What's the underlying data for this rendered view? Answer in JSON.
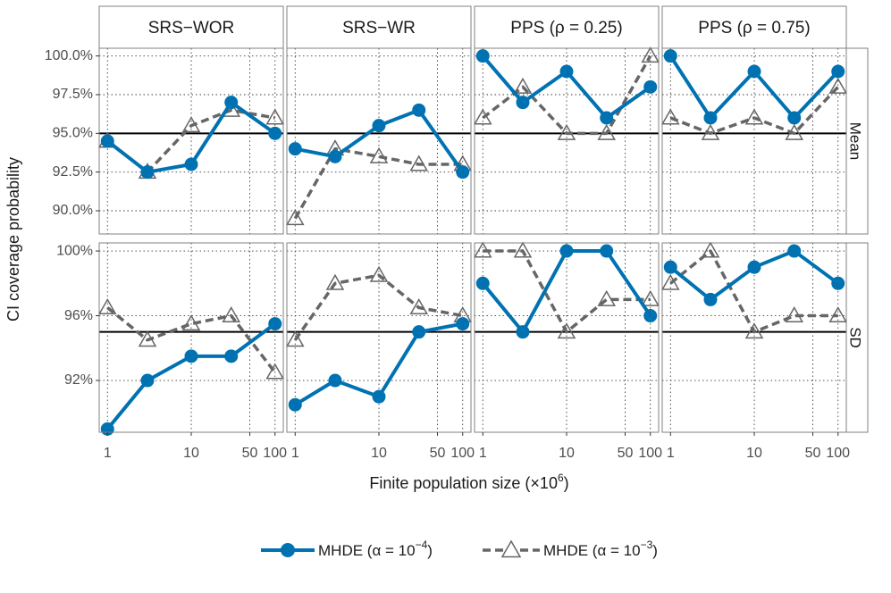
{
  "chart_data": {
    "type": "line",
    "x_values": [
      1,
      3,
      10,
      30,
      100
    ],
    "x_ticks": [
      1,
      10,
      50,
      100
    ],
    "x_label": "Finite population size (×10",
    "x_label_exp": "6",
    "x_label_close": ")",
    "y_label": "CI coverage probability",
    "reference_line": 0.95,
    "columns": [
      "SRS−WOR",
      "SRS−WR",
      "PPS (ρ = 0.25)",
      "PPS (ρ = 0.75)"
    ],
    "rows": [
      {
        "label": "Mean",
        "ylim": [
          0.885,
          1.005
        ],
        "y_ticks": [
          0.9,
          0.925,
          0.95,
          0.975,
          1.0
        ],
        "y_tick_labels": [
          "90.0%",
          "92.5%",
          "95.0%",
          "97.5%",
          "100.0%"
        ]
      },
      {
        "label": "SD",
        "ylim": [
          0.888,
          1.005
        ],
        "y_ticks": [
          0.92,
          0.96,
          1.0
        ],
        "y_tick_labels": [
          "92%",
          "96%",
          "100%"
        ]
      }
    ],
    "series": [
      {
        "name": "MHDE (α = 10",
        "exp": "−4",
        "close": ")",
        "color": "#0072B2",
        "style": "solid",
        "marker": "circle",
        "panels": [
          [
            [
              0.945,
              0.925,
              0.93,
              0.97,
              0.95
            ],
            [
              0.94,
              0.935,
              0.955,
              0.965,
              0.925
            ],
            [
              1.0,
              0.97,
              0.99,
              0.96,
              0.98
            ],
            [
              1.0,
              0.96,
              0.99,
              0.96,
              0.99
            ]
          ],
          [
            [
              0.89,
              0.92,
              0.935,
              0.935,
              0.955
            ],
            [
              0.905,
              0.92,
              0.91,
              0.95,
              0.955
            ],
            [
              0.98,
              0.95,
              1.0,
              1.0,
              0.96
            ],
            [
              0.99,
              0.97,
              0.99,
              1.0,
              0.98
            ]
          ]
        ]
      },
      {
        "name": "MHDE (α = 10",
        "exp": "−3",
        "close": ")",
        "color": "#666666",
        "style": "dashed",
        "marker": "triangle",
        "panels": [
          [
            [
              0.945,
              0.925,
              0.955,
              0.965,
              0.96
            ],
            [
              0.895,
              0.94,
              0.935,
              0.93,
              0.93
            ],
            [
              0.96,
              0.98,
              0.95,
              0.95,
              1.0
            ],
            [
              0.96,
              0.95,
              0.96,
              0.95,
              0.98
            ]
          ],
          [
            [
              0.965,
              0.945,
              0.955,
              0.96,
              0.925
            ],
            [
              0.945,
              0.98,
              0.985,
              0.965,
              0.96
            ],
            [
              1.0,
              1.0,
              0.95,
              0.97,
              0.97
            ],
            [
              0.98,
              1.0,
              0.95,
              0.96,
              0.96
            ]
          ]
        ]
      }
    ]
  }
}
